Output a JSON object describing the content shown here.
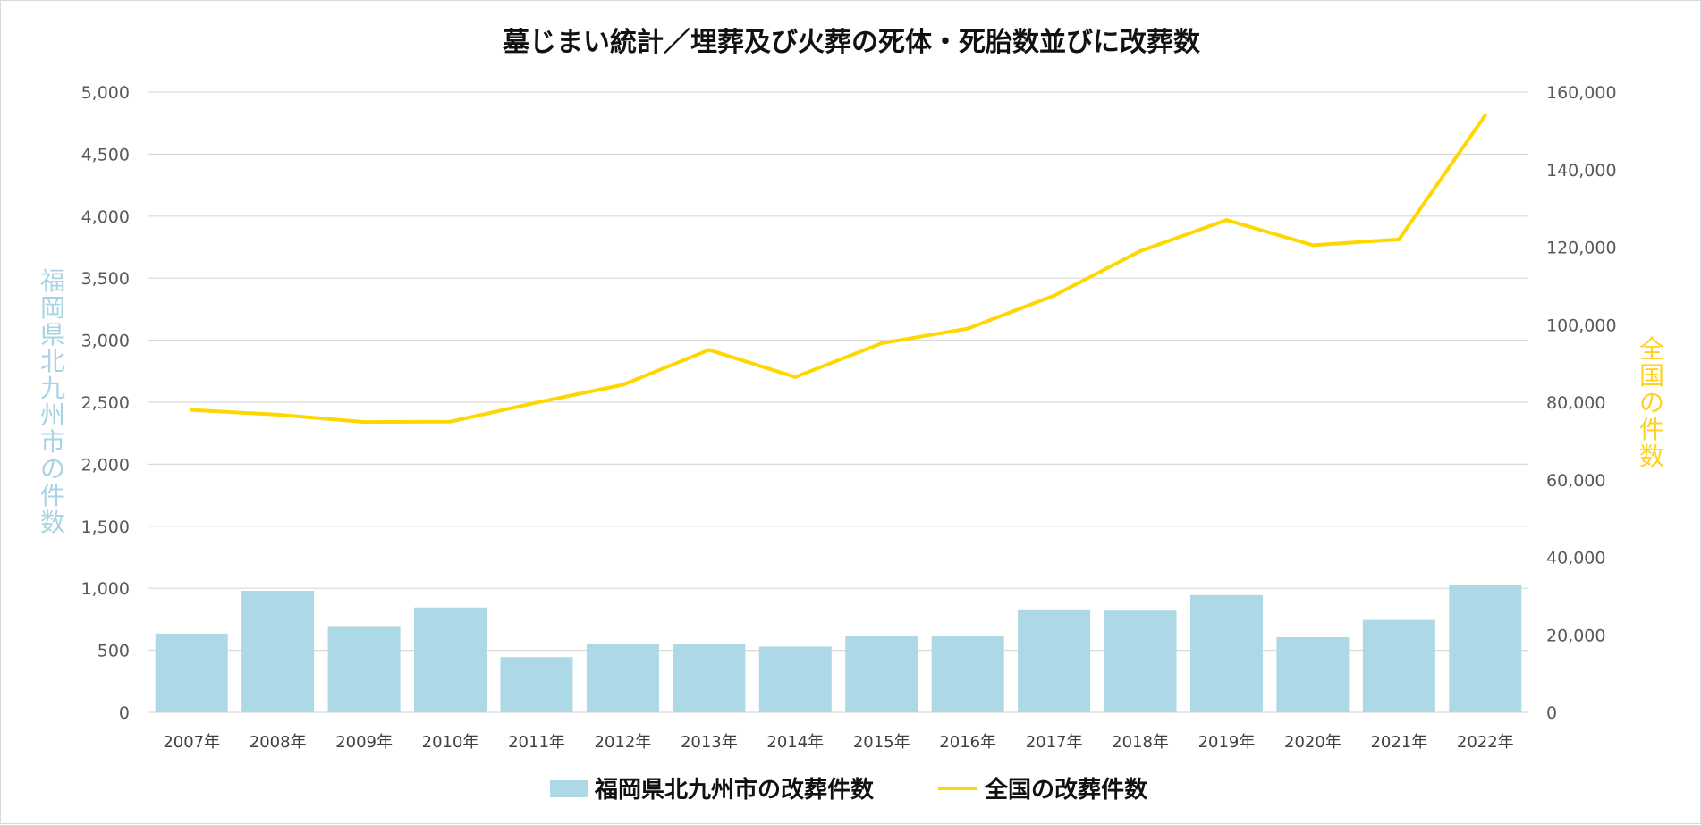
{
  "chart_data": {
    "type": "bar",
    "title": "墓じまい統計／埋葬及び火葬の死体・死胎数並びに改葬数",
    "categories": [
      "2007年",
      "2008年",
      "2009年",
      "2010年",
      "2011年",
      "2012年",
      "2013年",
      "2014年",
      "2015年",
      "2016年",
      "2017年",
      "2018年",
      "2019年",
      "2020年",
      "2021年",
      "2022年"
    ],
    "series": [
      {
        "name": "福岡県北九州市の改葬件数",
        "type": "bar",
        "axis": "left",
        "color": "#add8e6",
        "values": [
          635,
          980,
          695,
          845,
          445,
          555,
          550,
          530,
          615,
          620,
          830,
          820,
          945,
          605,
          745,
          1030
        ]
      },
      {
        "name": "全国の改葬件数",
        "type": "line",
        "axis": "right",
        "color": "#ffd700",
        "values": [
          78000,
          76800,
          74900,
          75000,
          79900,
          84500,
          93500,
          86500,
          95200,
          99000,
          107500,
          119000,
          127000,
          120500,
          122000,
          154000
        ]
      }
    ],
    "y_left": {
      "label": "福岡県北九州市の件数",
      "ylim": [
        0,
        5000
      ],
      "ticks": [
        "0",
        "500",
        "1,000",
        "1,500",
        "2,000",
        "2,500",
        "3,000",
        "3,500",
        "4,000",
        "4,500",
        "5,000"
      ]
    },
    "y_right": {
      "label": "全国の件数",
      "ylim": [
        0,
        160000
      ],
      "ticks": [
        "0",
        "20,000",
        "40,000",
        "60,000",
        "80,000",
        "100,000",
        "120,000",
        "140,000",
        "160,000"
      ]
    },
    "grid": true,
    "legend": "bottom"
  }
}
